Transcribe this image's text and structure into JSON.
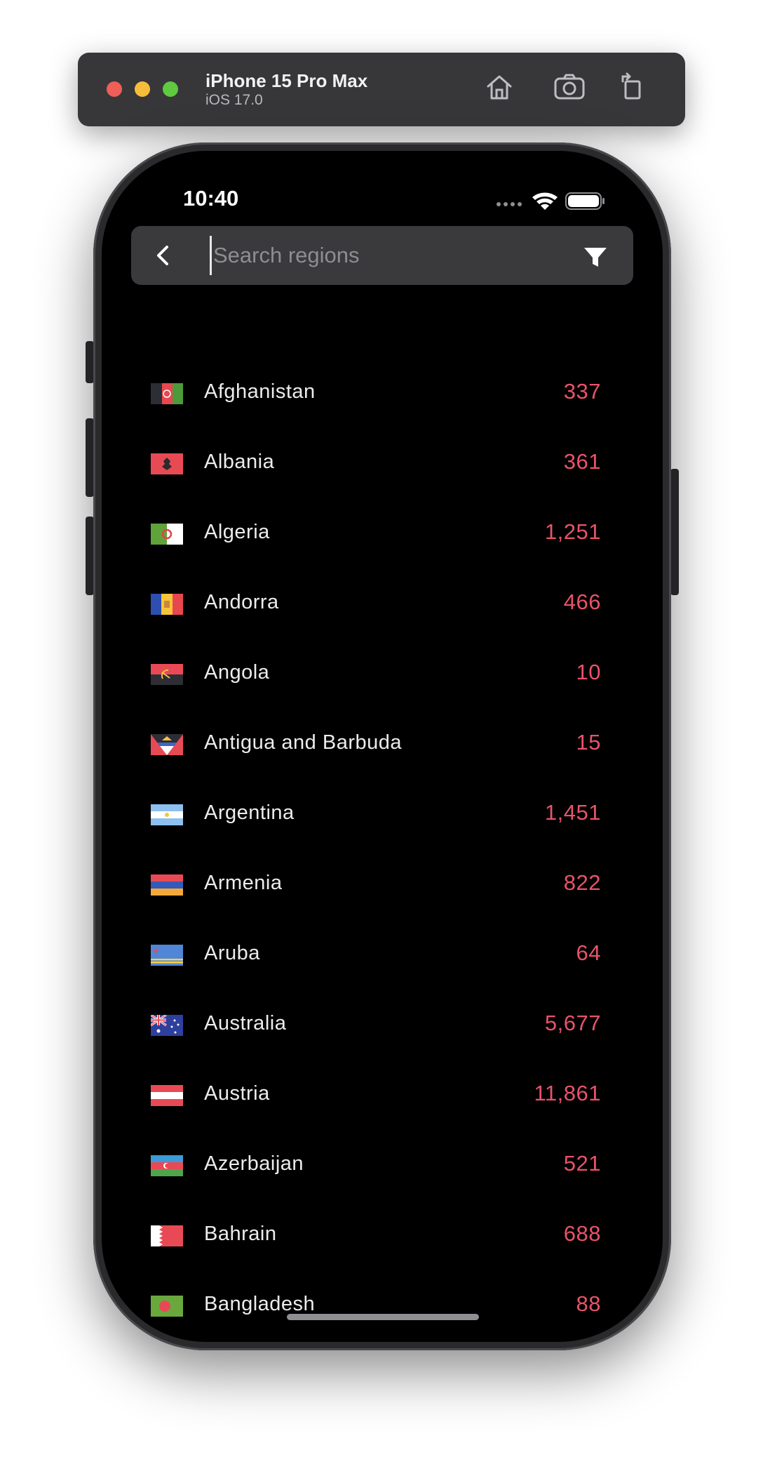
{
  "simulator": {
    "device_name": "iPhone 15 Pro Max",
    "os_version": "iOS 17.0",
    "home_icon": "home-icon",
    "screenshot_icon": "camera-icon",
    "rotate_icon": "rotate-icon"
  },
  "status_bar": {
    "time": "10:40",
    "icons": [
      "signal-dots-icon",
      "wifi-icon",
      "battery-icon"
    ]
  },
  "search": {
    "placeholder": "Search regions",
    "value": "",
    "back_icon": "chevron-left-icon",
    "filter_icon": "filter-icon"
  },
  "colors": {
    "count": "#e8536a",
    "search_bg": "#3a3a3d",
    "screen_bg": "#000000"
  },
  "regions": [
    {
      "name": "Afghanistan",
      "count": "337"
    },
    {
      "name": "Albania",
      "count": "361"
    },
    {
      "name": "Algeria",
      "count": "1,251"
    },
    {
      "name": "Andorra",
      "count": "466"
    },
    {
      "name": "Angola",
      "count": "10"
    },
    {
      "name": "Antigua and Barbuda",
      "count": "15"
    },
    {
      "name": "Argentina",
      "count": "1,451"
    },
    {
      "name": "Armenia",
      "count": "822"
    },
    {
      "name": "Aruba",
      "count": "64"
    },
    {
      "name": "Australia",
      "count": "5,677"
    },
    {
      "name": "Austria",
      "count": "11,861"
    },
    {
      "name": "Azerbaijan",
      "count": "521"
    },
    {
      "name": "Bahrain",
      "count": "688"
    },
    {
      "name": "Bangladesh",
      "count": "88"
    }
  ]
}
